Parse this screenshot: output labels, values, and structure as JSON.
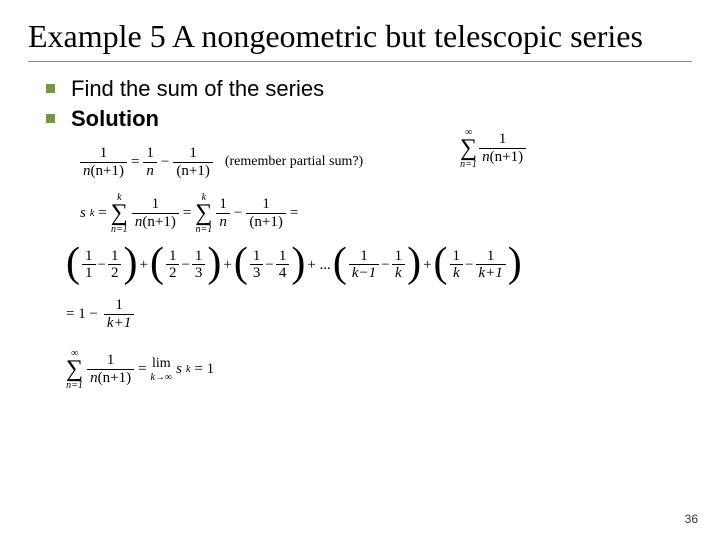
{
  "title": "Example 5 A nongeometric but telescopic series",
  "bullets": {
    "b1": "Find the sum of the series",
    "b2": "Solution"
  },
  "series": {
    "top": "∞",
    "bot": "n=1",
    "num": "1",
    "den_l": "n",
    "den_r": "(n+1)"
  },
  "eq1": {
    "lhs_num": "1",
    "lhs_den_l": "n",
    "lhs_den_r": "(n+1)",
    "eq": " = ",
    "t1_num": "1",
    "t1_den": "n",
    "minus": " − ",
    "t2_num": "1",
    "t2_den": "(n+1)",
    "note": "(remember partial sum?)"
  },
  "eq2": {
    "sk": "s",
    "sub": "k",
    "eq": " = ",
    "top": "k",
    "bot": "n=1",
    "lhs_num": "1",
    "lhs_den_l": "n",
    "lhs_den_r": "(n+1)",
    "t1_num": "1",
    "t1_den": "n",
    "minus": " − ",
    "t2_num": "1",
    "t2_den": "(n+1)",
    "tail": " ="
  },
  "eq3": {
    "p1_a_num": "1",
    "p1_a_den": "1",
    "p1_b_num": "1",
    "p1_b_den": "2",
    "p2_a_num": "1",
    "p2_a_den": "2",
    "p2_b_num": "1",
    "p2_b_den": "3",
    "p3_a_num": "1",
    "p3_a_den": "3",
    "p3_b_num": "1",
    "p3_b_den": "4",
    "dots": " + ... ",
    "p4_a_num": "1",
    "p4_a_den": "k−1",
    "p4_b_num": "1",
    "p4_b_den": "k",
    "p5_a_num": "1",
    "p5_a_den": "k",
    "p5_b_num": "1",
    "p5_b_den": "k+1",
    "plus": " + ",
    "minus": " − "
  },
  "eq4": {
    "pre": "= 1 − ",
    "num": "1",
    "den": "k+1"
  },
  "eq5": {
    "top": "∞",
    "bot": "n=1",
    "lhs_num": "1",
    "lhs_den_l": "n",
    "lhs_den_r": "(n+1)",
    "eq": " = ",
    "lim": "lim",
    "limbot": "k→∞",
    "sk": "s",
    "sub": "k",
    "tail": " = 1"
  },
  "page": "36",
  "colors": {
    "bullet": "#7a944a",
    "rule": "#888888",
    "text": "#000000",
    "bg": "#ffffff"
  }
}
